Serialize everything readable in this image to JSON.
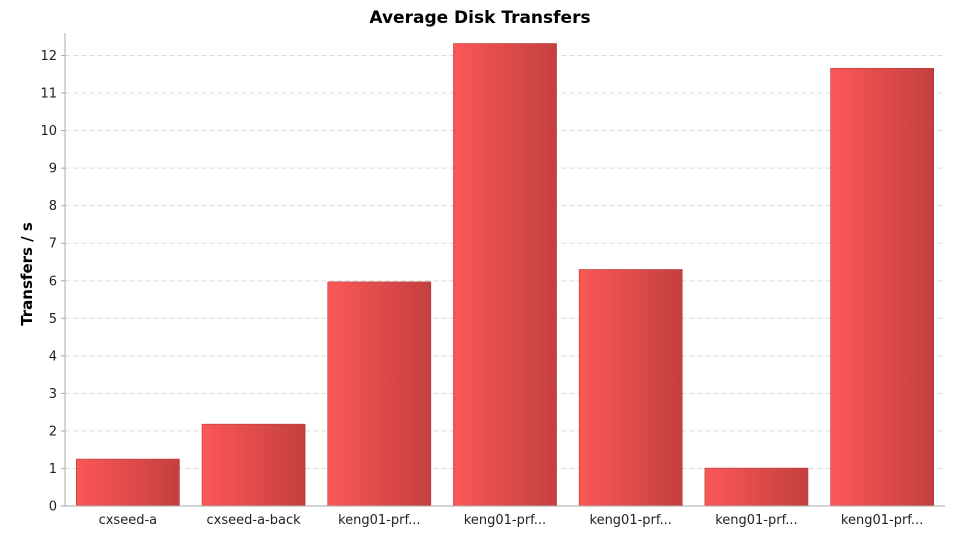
{
  "chart_data": {
    "type": "bar",
    "title": "Average Disk Transfers",
    "xlabel": "",
    "ylabel": "Transfers / s",
    "categories": [
      "cxseed-a",
      "cxseed-a-back",
      "keng01-prf...",
      "keng01-prf...",
      "keng01-prf...",
      "keng01-prf...",
      "keng01-prf..."
    ],
    "values": [
      1.25,
      2.18,
      5.97,
      12.32,
      6.3,
      1.01,
      11.66
    ],
    "ylim": [
      0,
      12.6
    ],
    "yticks": [
      0,
      1,
      2,
      3,
      4,
      5,
      6,
      7,
      8,
      9,
      10,
      11,
      12
    ],
    "grid": true,
    "legend": "none",
    "colors": {
      "bar_light": "#fc5757",
      "bar_dark": "#c43f3f"
    }
  }
}
